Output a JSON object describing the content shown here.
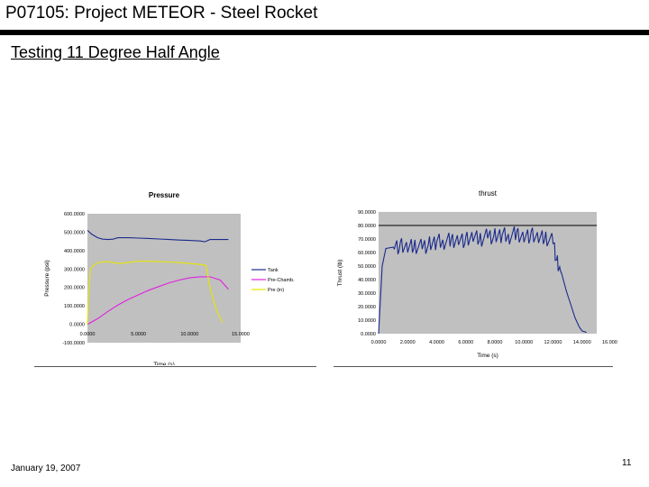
{
  "header": {
    "title": "P07105: Project METEOR - Steel Rocket",
    "subtitle": "Testing 11 Degree Half Angle"
  },
  "footer": {
    "date": "January 19, 2007",
    "page": "11"
  },
  "chart_data": [
    {
      "type": "line",
      "title": "Pressure",
      "xlabel": "Time (s)",
      "ylabel": "Pressure (psi)",
      "xlim": [
        0,
        15
      ],
      "ylim": [
        -100,
        600
      ],
      "x_ticks": [
        "0.0000",
        "5.0000",
        "10.0000",
        "15.0000"
      ],
      "y_ticks": [
        "600.0000",
        "500.0000",
        "400.0000",
        "300.0000",
        "200.0000",
        "100.0000",
        "0.0000",
        "-100.0000"
      ],
      "grid": false,
      "legend": "right",
      "series": [
        {
          "name": "Tank",
          "color": "#1a2a8c",
          "x": [
            0,
            0.4,
            1,
            1.5,
            2,
            2.5,
            3,
            4,
            5,
            6,
            7,
            8,
            9,
            10,
            11,
            11.5,
            12,
            13,
            13.8
          ],
          "y": [
            510,
            490,
            470,
            462,
            460,
            462,
            470,
            470,
            468,
            466,
            463,
            460,
            457,
            455,
            452,
            448,
            460,
            460,
            460
          ]
        },
        {
          "name": "Pre-Chamb.",
          "color": "#e020e0",
          "x": [
            0,
            1,
            2,
            3,
            4,
            5,
            6,
            7,
            8,
            9,
            10,
            11,
            12,
            13,
            13.8
          ],
          "y": [
            0,
            30,
            70,
            105,
            135,
            160,
            185,
            205,
            225,
            240,
            252,
            258,
            258,
            240,
            190
          ]
        },
        {
          "name": "Pre (in)",
          "color": "#e6e600",
          "x": [
            0,
            0.15,
            0.3,
            0.6,
            1,
            2,
            3,
            4,
            5,
            6,
            7,
            8,
            9,
            10,
            11,
            11.6,
            12,
            12.6,
            13.2
          ],
          "y": [
            0,
            200,
            300,
            320,
            335,
            340,
            330,
            335,
            342,
            342,
            340,
            338,
            335,
            330,
            325,
            320,
            200,
            80,
            10
          ]
        }
      ]
    },
    {
      "type": "line",
      "title": "thrust",
      "xlabel": "Time (s)",
      "ylabel": "Thrust (lb)",
      "xlim": [
        0,
        15
      ],
      "ylim": [
        0,
        90
      ],
      "x_ticks": [
        "0.0000",
        "2.0000",
        "4.0000",
        "6.0000",
        "8.0000",
        "10.0000",
        "12.0000",
        "14.0000",
        "16.0000"
      ],
      "y_ticks": [
        "90.0000",
        "80.0000",
        "70.0000",
        "60.0000",
        "50.0000",
        "40.0000",
        "30.0000",
        "20.0000",
        "10.0000",
        "0.0000"
      ],
      "reference_line": 80,
      "grid": false,
      "series": [
        {
          "name": "Thrust",
          "color": "#1a2a8c",
          "x": [
            0,
            0.1,
            0.25,
            0.5,
            1,
            1.5,
            2,
            2.5,
            3,
            3.5,
            4,
            4.5,
            5,
            5.5,
            6,
            6.5,
            7,
            7.5,
            8,
            8.5,
            9,
            9.5,
            10,
            10.5,
            11,
            11.5,
            12,
            12.3,
            12.6,
            12.9,
            13.2,
            13.5,
            13.8,
            14,
            14.3
          ],
          "y": [
            0,
            20,
            50,
            63,
            64,
            65,
            63,
            65,
            64,
            66,
            68,
            68,
            69,
            70,
            69,
            71,
            70,
            72,
            72,
            73,
            72,
            74,
            72,
            73,
            70,
            71,
            68,
            52,
            44,
            32,
            22,
            12,
            5,
            2,
            1
          ]
        }
      ]
    }
  ]
}
